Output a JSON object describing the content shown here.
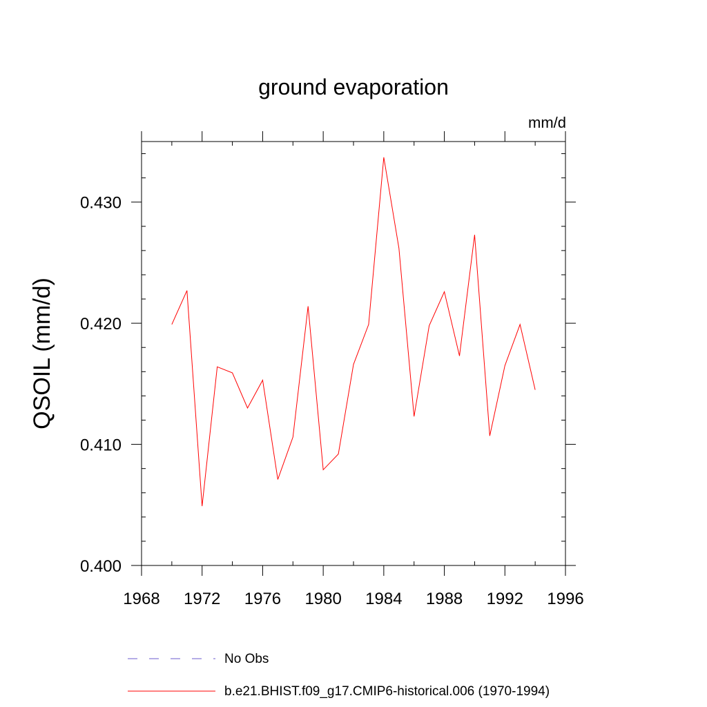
{
  "chart_data": {
    "type": "line",
    "title": "ground evaporation",
    "units": "mm/d",
    "xlabel": "",
    "ylabel": "QSOIL  (mm/d)",
    "xlim": [
      1968,
      1996
    ],
    "ylim": [
      0.4,
      0.435
    ],
    "x_ticks": [
      1968,
      1972,
      1976,
      1980,
      1984,
      1988,
      1992,
      1996
    ],
    "x_minor_ticks": [
      1970,
      1974,
      1978,
      1982,
      1986,
      1990,
      1994
    ],
    "y_ticks": [
      0.4,
      0.41,
      0.42,
      0.43
    ],
    "y_tick_labels": [
      "0.400",
      "0.410",
      "0.420",
      "0.430"
    ],
    "y_minor_ticks": [
      0.402,
      0.404,
      0.406,
      0.408,
      0.412,
      0.414,
      0.416,
      0.418,
      0.422,
      0.424,
      0.426,
      0.428,
      0.432,
      0.434
    ],
    "series": [
      {
        "name": "b.e21.BHIST.f09_g17.CMIP6-historical.006 (1970-1994)",
        "color": "#ff0000",
        "style": "solid",
        "x": [
          1970,
          1971,
          1972,
          1973,
          1974,
          1975,
          1976,
          1977,
          1978,
          1979,
          1980,
          1981,
          1982,
          1983,
          1984,
          1985,
          1986,
          1987,
          1988,
          1989,
          1990,
          1991,
          1992,
          1993,
          1994
        ],
        "y": [
          0.4199,
          0.4227,
          0.4049,
          0.4164,
          0.4159,
          0.413,
          0.4153,
          0.4071,
          0.4106,
          0.4214,
          0.4079,
          0.4092,
          0.4166,
          0.4199,
          0.4337,
          0.4262,
          0.4123,
          0.4198,
          0.4226,
          0.4173,
          0.4273,
          0.4107,
          0.4165,
          0.4199,
          0.4145
        ]
      }
    ],
    "legend": [
      {
        "label": "No Obs",
        "color": "#6a5acd",
        "style": "dashed"
      },
      {
        "label": "b.e21.BHIST.f09_g17.CMIP6-historical.006 (1970-1994)",
        "color": "#ff0000",
        "style": "solid"
      }
    ]
  }
}
